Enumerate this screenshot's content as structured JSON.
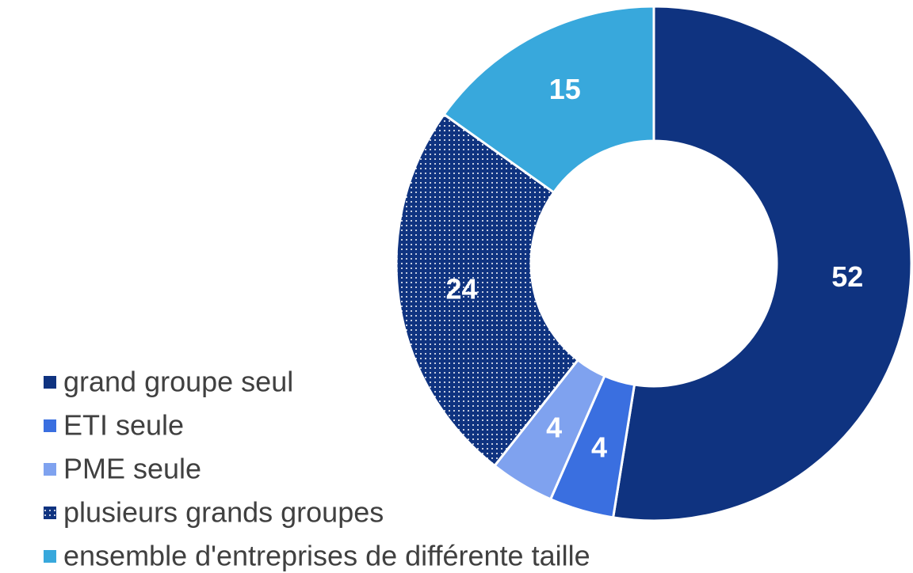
{
  "chart_data": {
    "type": "donut",
    "categories": [
      "grand groupe seul",
      "ETI seule",
      "PME seule",
      "plusieurs grands groupes",
      "ensemble d'entreprises de différente taille"
    ],
    "values": [
      52,
      4,
      4,
      24,
      15
    ],
    "colors": [
      "#0f3380",
      "#3a6fe0",
      "#7fa2ef",
      "#0f3380",
      "#38a8dc"
    ],
    "patterned": [
      false,
      false,
      false,
      true,
      false
    ]
  }
}
